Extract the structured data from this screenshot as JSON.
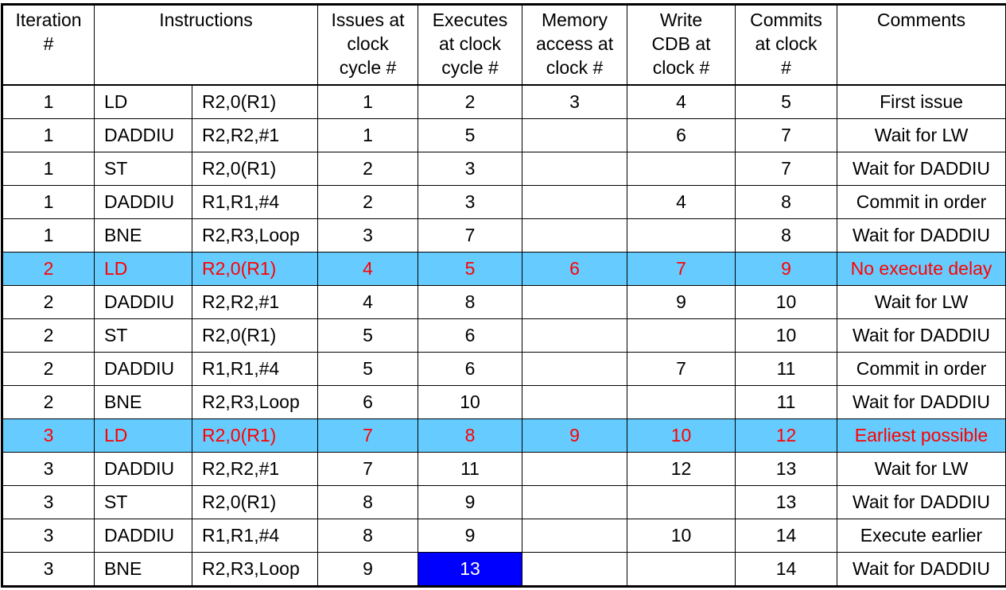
{
  "colors": {
    "row_highlight_bg": "#66ccff",
    "row_highlight_text": "#ff0000",
    "cell_highlight_bg": "#0000ff",
    "cell_highlight_text": "#ffffff"
  },
  "headers": {
    "iteration": "Iteration\n#",
    "instructions": "Instructions",
    "issues": "Issues at\nclock\ncycle #",
    "executes": "Executes\nat clock\ncycle #",
    "memory": "Memory\naccess at\nclock #",
    "write_cdb": "Write\nCDB at\nclock #",
    "commits": "Commits\nat clock\n#",
    "comments": "Comments"
  },
  "rows": [
    {
      "iter": "1",
      "op": "LD",
      "args": "R2,0(R1)",
      "issue": "1",
      "exec": "2",
      "mem": "3",
      "cdb": "4",
      "commit": "5",
      "comment": "First issue",
      "highlight": false
    },
    {
      "iter": "1",
      "op": "DADDIU",
      "args": "R2,R2,#1",
      "issue": "1",
      "exec": "5",
      "mem": "",
      "cdb": "6",
      "commit": "7",
      "comment": "Wait for LW",
      "highlight": false
    },
    {
      "iter": "1",
      "op": "ST",
      "args": "R2,0(R1)",
      "issue": "2",
      "exec": "3",
      "mem": "",
      "cdb": "",
      "commit": "7",
      "comment": "Wait for DADDIU",
      "highlight": false
    },
    {
      "iter": "1",
      "op": "DADDIU",
      "args": "R1,R1,#4",
      "issue": "2",
      "exec": "3",
      "mem": "",
      "cdb": "4",
      "commit": "8",
      "comment": "Commit in order",
      "highlight": false
    },
    {
      "iter": "1",
      "op": "BNE",
      "args": "R2,R3,Loop",
      "issue": "3",
      "exec": "7",
      "mem": "",
      "cdb": "",
      "commit": "8",
      "comment": "Wait for DADDIU",
      "highlight": false
    },
    {
      "iter": "2",
      "op": "LD",
      "args": "R2,0(R1)",
      "issue": "4",
      "exec": "5",
      "mem": "6",
      "cdb": "7",
      "commit": "9",
      "comment": "No execute delay",
      "highlight": true
    },
    {
      "iter": "2",
      "op": "DADDIU",
      "args": "R2,R2,#1",
      "issue": "4",
      "exec": "8",
      "mem": "",
      "cdb": "9",
      "commit": "10",
      "comment": "Wait for LW",
      "highlight": false
    },
    {
      "iter": "2",
      "op": "ST",
      "args": "R2,0(R1)",
      "issue": "5",
      "exec": "6",
      "mem": "",
      "cdb": "",
      "commit": "10",
      "comment": "Wait for DADDIU",
      "highlight": false
    },
    {
      "iter": "2",
      "op": "DADDIU",
      "args": "R1,R1,#4",
      "issue": "5",
      "exec": "6",
      "mem": "",
      "cdb": "7",
      "commit": "11",
      "comment": "Commit in order",
      "highlight": false
    },
    {
      "iter": "2",
      "op": "BNE",
      "args": "R2,R3,Loop",
      "issue": "6",
      "exec": "10",
      "mem": "",
      "cdb": "",
      "commit": "11",
      "comment": "Wait for DADDIU",
      "highlight": false
    },
    {
      "iter": "3",
      "op": "LD",
      "args": "R2,0(R1)",
      "issue": "7",
      "exec": "8",
      "mem": "9",
      "cdb": "10",
      "commit": "12",
      "comment": "Earliest possible",
      "highlight": true
    },
    {
      "iter": "3",
      "op": "DADDIU",
      "args": "R2,R2,#1",
      "issue": "7",
      "exec": "11",
      "mem": "",
      "cdb": "12",
      "commit": "13",
      "comment": "Wait for LW",
      "highlight": false
    },
    {
      "iter": "3",
      "op": "ST",
      "args": "R2,0(R1)",
      "issue": "8",
      "exec": "9",
      "mem": "",
      "cdb": "",
      "commit": "13",
      "comment": "Wait for DADDIU",
      "highlight": false
    },
    {
      "iter": "3",
      "op": "DADDIU",
      "args": "R1,R1,#4",
      "issue": "8",
      "exec": "9",
      "mem": "",
      "cdb": "10",
      "commit": "14",
      "comment": "Execute earlier",
      "highlight": false
    },
    {
      "iter": "3",
      "op": "BNE",
      "args": "R2,R3,Loop",
      "issue": "9",
      "exec": "13",
      "mem": "",
      "cdb": "",
      "commit": "14",
      "comment": "Wait for DADDIU",
      "highlight": false,
      "exec_highlight": true
    }
  ]
}
